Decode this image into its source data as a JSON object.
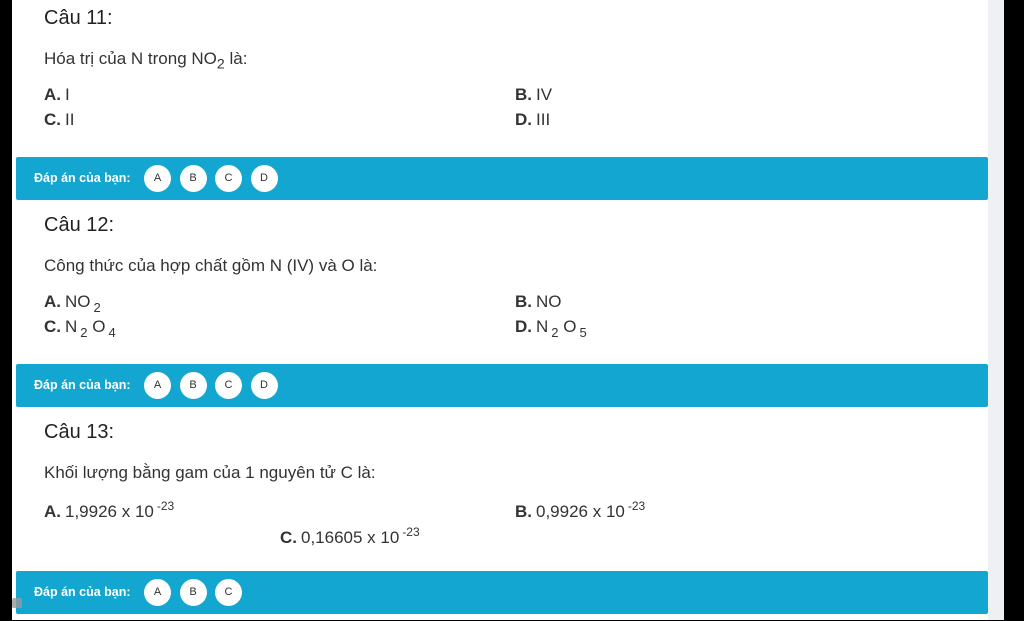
{
  "answer_label": "Đáp án của bạn:",
  "colors": {
    "bar": "#13a6d0"
  },
  "questions": [
    {
      "heading": "Câu 11:",
      "question": [
        {
          "t": "Hóa trị của N trong NO"
        },
        {
          "sub": "2"
        },
        {
          "t": " là:"
        }
      ],
      "options": [
        {
          "letter": "A.",
          "parts": [
            {
              "t": "I"
            }
          ]
        },
        {
          "letter": "B.",
          "parts": [
            {
              "t": "IV"
            }
          ]
        },
        {
          "letter": "C.",
          "parts": [
            {
              "t": "II"
            }
          ]
        },
        {
          "letter": "D.",
          "parts": [
            {
              "t": "III"
            }
          ]
        }
      ],
      "choices": [
        "A",
        "B",
        "C",
        "D"
      ]
    },
    {
      "heading": "Câu 12:",
      "question": [
        {
          "t": "Công thức của hợp chất gồm N (IV) và O là:"
        }
      ],
      "options": [
        {
          "letter": "A.",
          "parts": [
            {
              "t": "NO"
            },
            {
              "sub": "2"
            }
          ]
        },
        {
          "letter": "B.",
          "parts": [
            {
              "t": "NO"
            }
          ]
        },
        {
          "letter": "C.",
          "parts": [
            {
              "t": "N"
            },
            {
              "sub": "2"
            },
            {
              "t": " O"
            },
            {
              "sub": "4"
            }
          ]
        },
        {
          "letter": "D.",
          "parts": [
            {
              "t": "N"
            },
            {
              "sub": "2"
            },
            {
              "t": " O"
            },
            {
              "sub": "5"
            }
          ]
        }
      ],
      "choices": [
        "A",
        "B",
        "C",
        "D"
      ]
    },
    {
      "heading": "Câu 13:",
      "question": [
        {
          "t": "Khối lượng bằng gam của 1 nguyên tử C là:"
        }
      ],
      "options": [
        {
          "letter": "A.",
          "parts": [
            {
              "t": "1,9926 x 10"
            },
            {
              "sup": "-23"
            }
          ]
        },
        {
          "letter": "B.",
          "parts": [
            {
              "t": "0,9926 x 10"
            },
            {
              "sup": "-23"
            }
          ]
        },
        {
          "letter": "C.",
          "parts": [
            {
              "t": "0,16605 x 10"
            },
            {
              "sup": "-23"
            }
          ]
        }
      ],
      "choices": [
        "A",
        "B",
        "C"
      ]
    }
  ]
}
